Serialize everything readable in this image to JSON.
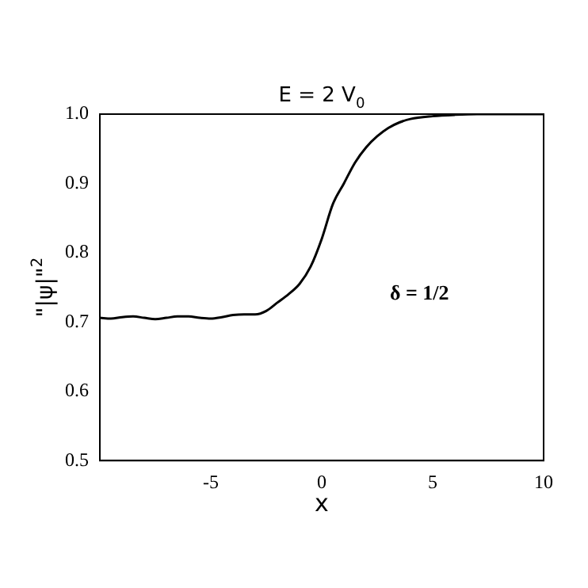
{
  "chart_data": {
    "type": "line",
    "title": "E = 2 V$_{0}$",
    "xlabel": "x",
    "ylabel": "\"|ψ|\"$^{2}$",
    "x": [
      -10,
      -9.5,
      -9,
      -8.5,
      -8,
      -7.5,
      -7,
      -6.5,
      -6,
      -5.5,
      -5,
      -4.5,
      -4,
      -3.5,
      -3,
      -2.5,
      -2,
      -1.5,
      -1,
      -0.5,
      0,
      0.5,
      1,
      1.5,
      2,
      2.5,
      3,
      3.5,
      4,
      5,
      6,
      7,
      8,
      10
    ],
    "series": [
      {
        "color": "#000000",
        "values": [
          0.706,
          0.705,
          0.707,
          0.708,
          0.706,
          0.704,
          0.706,
          0.708,
          0.708,
          0.706,
          0.705,
          0.707,
          0.71,
          0.711,
          0.711,
          0.716,
          0.728,
          0.74,
          0.755,
          0.78,
          0.82,
          0.87,
          0.9,
          0.93,
          0.952,
          0.968,
          0.98,
          0.988,
          0.993,
          0.997,
          0.999,
          1.0,
          1.0,
          1.0
        ]
      }
    ],
    "xlim": [
      -10,
      10
    ],
    "xticks": [
      -5,
      0,
      5,
      10
    ],
    "ylim": [
      0.5,
      1.0
    ],
    "yticks": [
      {
        "value": 0.5,
        "label": "0.5"
      },
      {
        "value": 0.6,
        "label": "0.6"
      },
      {
        "value": 0.7,
        "label": "0.7"
      },
      {
        "value": 0.8,
        "label": "0.8"
      },
      {
        "value": 0.9,
        "label": "0.9"
      },
      {
        "value": 1,
        "label": "1.0"
      }
    ],
    "annotations": [
      "δ = 1/2"
    ],
    "grid": false,
    "legend": false,
    "marker": "none",
    "line_style": "solid"
  }
}
